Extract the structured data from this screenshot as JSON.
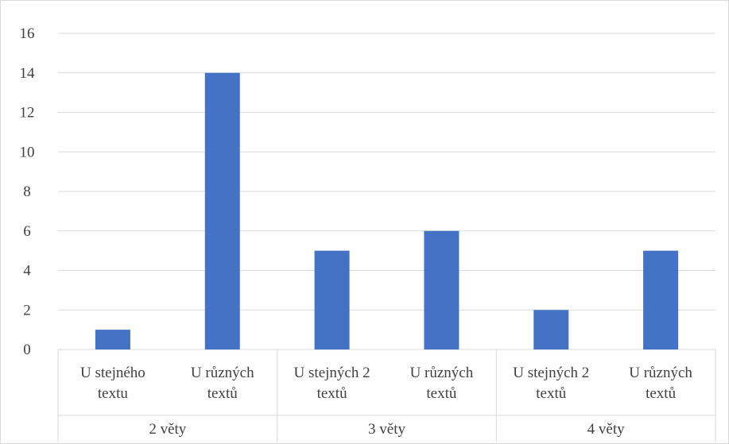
{
  "chart_data": {
    "type": "bar",
    "title": "",
    "xlabel": "",
    "ylabel": "",
    "ylim": [
      0,
      16
    ],
    "yticks": [
      0,
      2,
      4,
      6,
      8,
      10,
      12,
      14,
      16
    ],
    "grid": true,
    "legend": "none",
    "bar_color": "#4472c4",
    "groups": [
      {
        "label": "2 věty",
        "categories": [
          {
            "lines": [
              "U stejného",
              "textu"
            ],
            "value": 1
          },
          {
            "lines": [
              "U různých",
              "textů"
            ],
            "value": 14
          }
        ]
      },
      {
        "label": "3 věty",
        "categories": [
          {
            "lines": [
              "U stejných 2",
              "textů"
            ],
            "value": 5
          },
          {
            "lines": [
              "U různých",
              "textů"
            ],
            "value": 6
          }
        ]
      },
      {
        "label": "4 věty",
        "categories": [
          {
            "lines": [
              "U stejných 2",
              "textů"
            ],
            "value": 2
          },
          {
            "lines": [
              "U různých",
              "textů"
            ],
            "value": 5
          }
        ]
      }
    ]
  }
}
